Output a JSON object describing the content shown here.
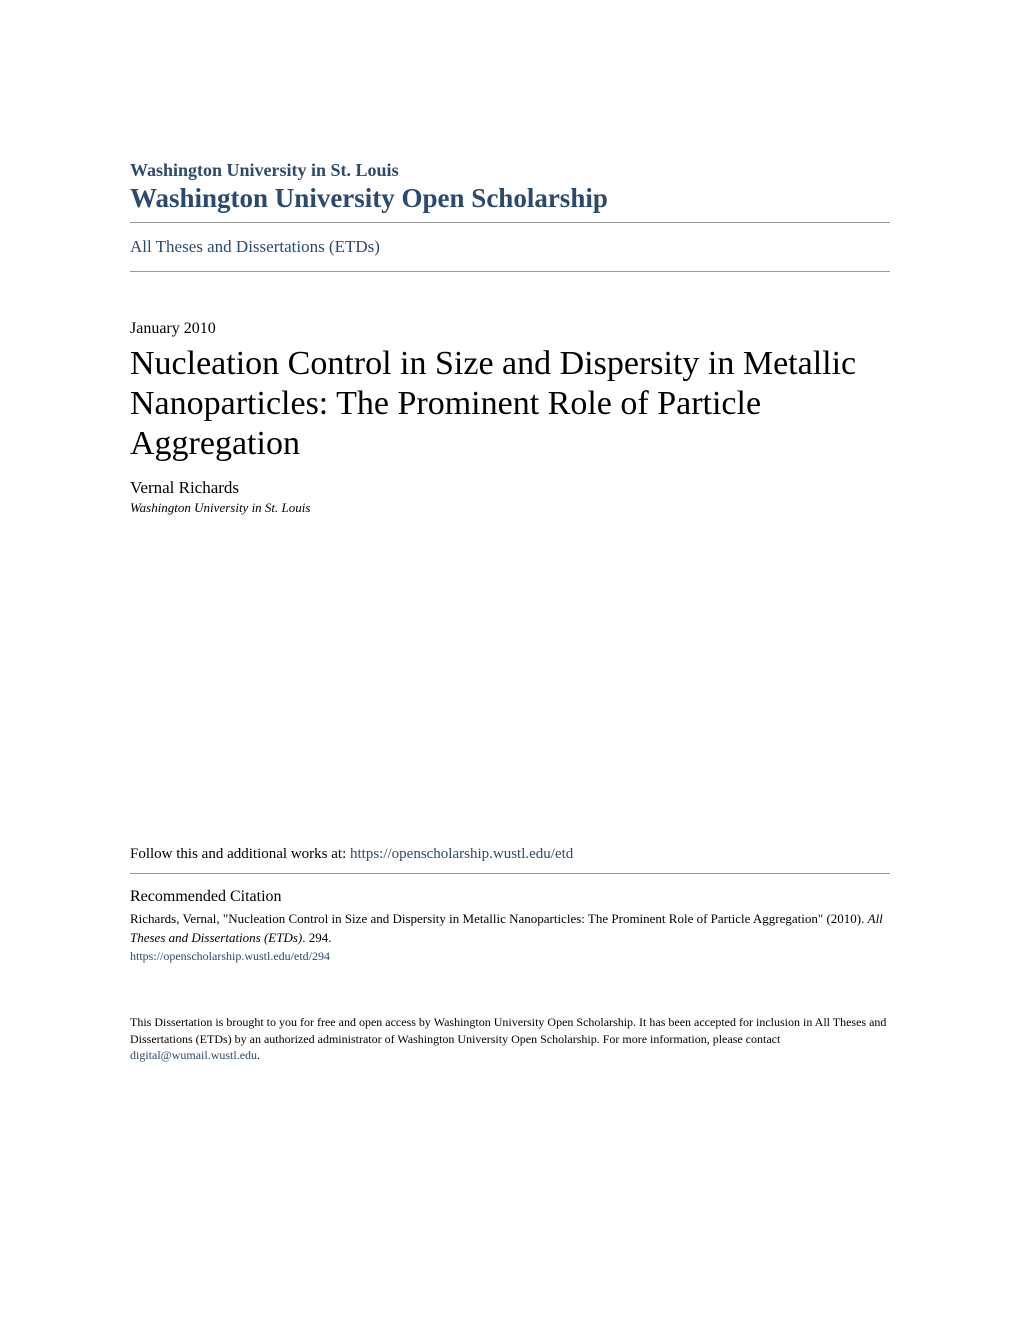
{
  "header": {
    "institution": "Washington University in St. Louis",
    "repository": "Washington University Open Scholarship",
    "collection": "All Theses and Dissertations (ETDs)"
  },
  "document": {
    "date": "January 2010",
    "title": "Nucleation Control in Size and Dispersity in Metallic Nanoparticles: The Prominent Role of Particle Aggregation",
    "author": "Vernal Richards",
    "affiliation": "Washington University in St. Louis"
  },
  "follow": {
    "prefix": "Follow this and additional works at: ",
    "url": "https://openscholarship.wustl.edu/etd"
  },
  "citation": {
    "heading": "Recommended Citation",
    "text_part1": "Richards, Vernal, \"Nucleation Control in Size and Dispersity in Metallic Nanoparticles: The Prominent Role of Particle Aggregation\" (2010). ",
    "text_italic": "All Theses and Dissertations (ETDs)",
    "text_part2": ". 294.",
    "url": "https://openscholarship.wustl.edu/etd/294"
  },
  "footer": {
    "text_part1": "This Dissertation is brought to you for free and open access by Washington University Open Scholarship. It has been accepted for inclusion in All Theses and Dissertations (ETDs) by an authorized administrator of Washington University Open Scholarship. For more information, please contact ",
    "email": "digital@wumail.wustl.edu",
    "text_part2": "."
  },
  "colors": {
    "link_color": "#2b4a6f",
    "text_color": "#000000",
    "divider_color": "#999999",
    "background": "#ffffff"
  }
}
